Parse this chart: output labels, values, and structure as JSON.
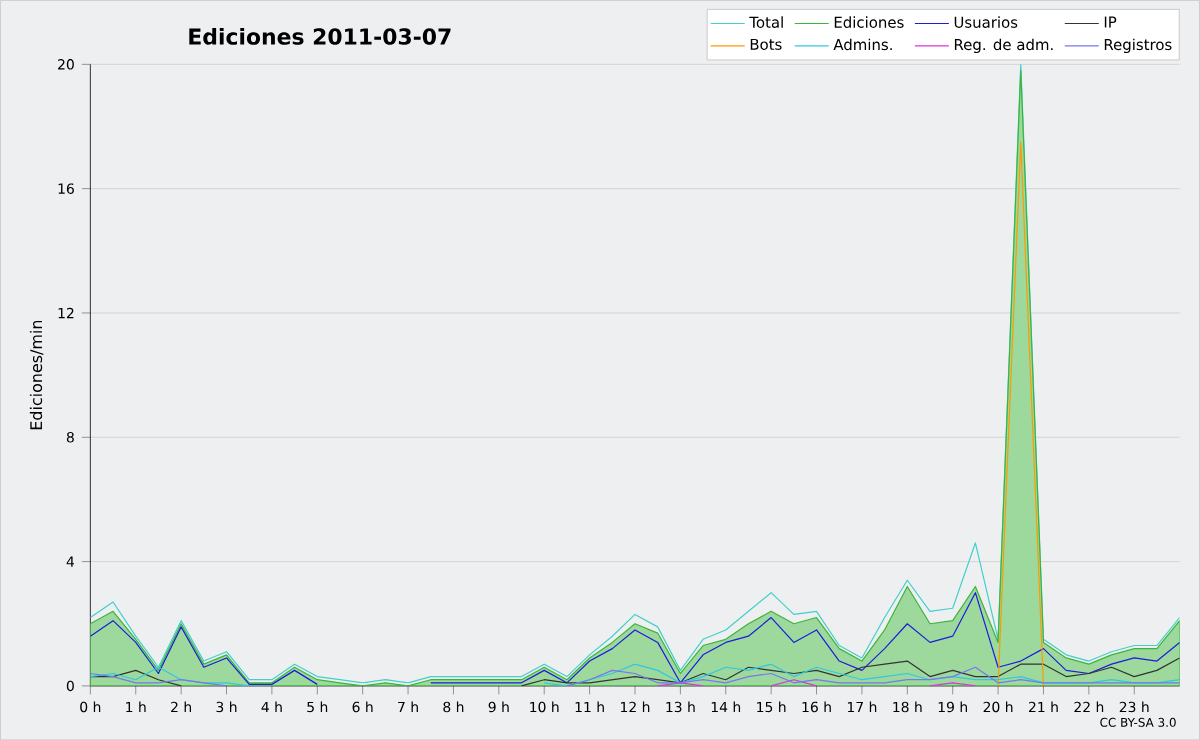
{
  "chart_data": {
    "type": "line",
    "title": "Ediciones  2011-03-07",
    "ylabel": "Ediciones/min",
    "x": [
      0,
      0.5,
      1,
      1.5,
      2,
      2.5,
      3,
      3.5,
      4,
      4.5,
      5,
      5.5,
      6,
      6.5,
      7,
      7.5,
      8,
      8.5,
      9,
      9.5,
      10,
      10.5,
      11,
      11.5,
      12,
      12.5,
      13,
      13.5,
      14,
      14.5,
      15,
      15.5,
      16,
      16.5,
      17,
      17.5,
      18,
      18.5,
      19,
      19.5,
      20,
      20.5,
      21,
      21.5,
      22,
      22.5,
      23,
      23.5,
      24
    ],
    "series": [
      {
        "name": "Total",
        "color": "#40d0c8",
        "values": [
          2.2,
          2.7,
          1.6,
          0.6,
          2.1,
          0.8,
          1.1,
          0.2,
          0.2,
          0.7,
          0.3,
          0.2,
          0.1,
          0.2,
          0.1,
          0.3,
          0.3,
          0.3,
          0.3,
          0.3,
          0.7,
          0.3,
          1.0,
          1.6,
          2.3,
          1.9,
          0.5,
          1.5,
          1.8,
          2.4,
          3.0,
          2.3,
          2.4,
          1.3,
          0.9,
          2.2,
          3.4,
          2.4,
          2.5,
          4.6,
          1.5,
          20,
          1.5,
          1.0,
          0.8,
          1.1,
          1.3,
          1.3,
          2.2
        ]
      },
      {
        "name": "Ediciones",
        "type": "area",
        "color": "#3cb43c",
        "values": [
          2.0,
          2.4,
          1.5,
          0.5,
          2.0,
          0.7,
          1.0,
          0.1,
          0.1,
          0.6,
          0.2,
          0.1,
          0,
          0.1,
          0,
          0.2,
          0.2,
          0.2,
          0.2,
          0.2,
          0.6,
          0.2,
          0.9,
          1.4,
          2.0,
          1.7,
          0.4,
          1.3,
          1.5,
          2.0,
          2.4,
          2.0,
          2.2,
          1.2,
          0.8,
          1.8,
          3.2,
          2.0,
          2.1,
          3.2,
          1.4,
          19.8,
          1.4,
          0.9,
          0.7,
          1.0,
          1.2,
          1.2,
          2.1
        ]
      },
      {
        "name": "Usuarios",
        "color": "#1c1cdc",
        "values": [
          1.6,
          2.1,
          1.4,
          0.4,
          1.9,
          0.6,
          0.9,
          0.05,
          0.05,
          0.5,
          0.05,
          null,
          null,
          null,
          null,
          0.1,
          0.1,
          0.1,
          0.1,
          0.1,
          0.5,
          0.1,
          0.8,
          1.2,
          1.8,
          1.4,
          0.1,
          1.0,
          1.4,
          1.6,
          2.2,
          1.4,
          1.8,
          0.8,
          0.5,
          1.2,
          2.0,
          1.4,
          1.6,
          3.0,
          0.6,
          0.8,
          1.2,
          0.5,
          0.4,
          0.7,
          0.9,
          0.8,
          1.4
        ]
      },
      {
        "name": "IP",
        "color": "#333333",
        "values": [
          0.3,
          0.3,
          0.5,
          0.2,
          0,
          null,
          null,
          null,
          null,
          null,
          null,
          null,
          null,
          null,
          null,
          null,
          null,
          null,
          null,
          0,
          0.2,
          0.1,
          0.1,
          0.2,
          0.3,
          0.2,
          0.1,
          0.4,
          0.2,
          0.6,
          0.5,
          0.4,
          0.5,
          0.3,
          0.6,
          0.7,
          0.8,
          0.3,
          0.5,
          0.3,
          0.3,
          0.7,
          0.7,
          0.3,
          0.4,
          0.6,
          0.3,
          0.5,
          0.9
        ]
      },
      {
        "name": "Bots",
        "color": "#ff9900",
        "values": [
          null,
          null,
          null,
          null,
          null,
          null,
          null,
          null,
          null,
          null,
          null,
          null,
          null,
          null,
          null,
          null,
          null,
          null,
          null,
          null,
          null,
          null,
          null,
          null,
          null,
          null,
          null,
          null,
          null,
          null,
          null,
          null,
          null,
          null,
          null,
          null,
          null,
          null,
          null,
          null,
          0,
          17.5,
          0,
          null,
          null,
          null,
          null,
          null,
          null
        ]
      },
      {
        "name": "Admins.",
        "color": "#30c8e0",
        "values": [
          0.3,
          0.4,
          0.2,
          0.6,
          0.2,
          0.1,
          0.1,
          0,
          null,
          null,
          null,
          null,
          null,
          null,
          null,
          null,
          null,
          null,
          null,
          null,
          0.1,
          0,
          0.2,
          0.4,
          0.7,
          0.5,
          0.1,
          0.3,
          0.6,
          0.5,
          0.7,
          0.3,
          0.6,
          0.4,
          0.2,
          0.3,
          0.4,
          0.2,
          0.3,
          0.2,
          0.2,
          0.3,
          0.1,
          0.1,
          0.1,
          0.2,
          0.1,
          0.1,
          0.2
        ]
      },
      {
        "name": "Reg. de adm.",
        "color": "#dd33dd",
        "values": [
          null,
          null,
          null,
          null,
          null,
          null,
          null,
          null,
          null,
          null,
          null,
          null,
          null,
          null,
          null,
          null,
          null,
          null,
          null,
          null,
          null,
          null,
          null,
          null,
          null,
          0,
          0.1,
          0,
          null,
          null,
          0,
          0.2,
          0,
          null,
          null,
          null,
          null,
          0,
          0.1,
          0,
          null,
          null,
          null,
          null,
          null,
          null,
          null,
          null,
          null
        ]
      },
      {
        "name": "Registros",
        "color": "#7777ee",
        "values": [
          0.4,
          0.3,
          0.1,
          0.1,
          0.2,
          0.1,
          0,
          null,
          null,
          null,
          null,
          null,
          null,
          null,
          null,
          null,
          null,
          null,
          null,
          null,
          null,
          0,
          0.2,
          0.5,
          0.4,
          0.1,
          0.1,
          0.2,
          0.1,
          0.3,
          0.4,
          0.1,
          0.2,
          0.1,
          0.1,
          0.1,
          0.2,
          0.2,
          0.3,
          0.6,
          0.1,
          0.2,
          0.1,
          0.1,
          0.1,
          0.1,
          0.1,
          0.1,
          0.1
        ]
      }
    ],
    "xlim": [
      0,
      24
    ],
    "xticks": [
      {
        "value": 0,
        "label": "0 h"
      },
      {
        "value": 1,
        "label": "1 h"
      },
      {
        "value": 2,
        "label": "2 h"
      },
      {
        "value": 3,
        "label": "3 h"
      },
      {
        "value": 4,
        "label": "4 h"
      },
      {
        "value": 5,
        "label": "5 h"
      },
      {
        "value": 6,
        "label": "6 h"
      },
      {
        "value": 7,
        "label": "7 h"
      },
      {
        "value": 8,
        "label": "8 h"
      },
      {
        "value": 9,
        "label": "9 h"
      },
      {
        "value": 10,
        "label": "10 h"
      },
      {
        "value": 11,
        "label": "11 h"
      },
      {
        "value": 12,
        "label": "12 h"
      },
      {
        "value": 13,
        "label": "13 h"
      },
      {
        "value": 14,
        "label": "14 h"
      },
      {
        "value": 15,
        "label": "15 h"
      },
      {
        "value": 16,
        "label": "16 h"
      },
      {
        "value": 17,
        "label": "17 h"
      },
      {
        "value": 18,
        "label": "18 h"
      },
      {
        "value": 19,
        "label": "19 h"
      },
      {
        "value": 20,
        "label": "20 h"
      },
      {
        "value": 21,
        "label": "21 h"
      },
      {
        "value": 22,
        "label": "22 h"
      },
      {
        "value": 23,
        "label": "23 h"
      }
    ],
    "ylim": [
      0,
      20
    ],
    "yticks": [
      0,
      4,
      8,
      12,
      16,
      20
    ],
    "grid": "y",
    "legend": "top right",
    "marker": "none",
    "line_style": "solid",
    "annotations": [
      "CC BY-SA 3.0"
    ]
  }
}
